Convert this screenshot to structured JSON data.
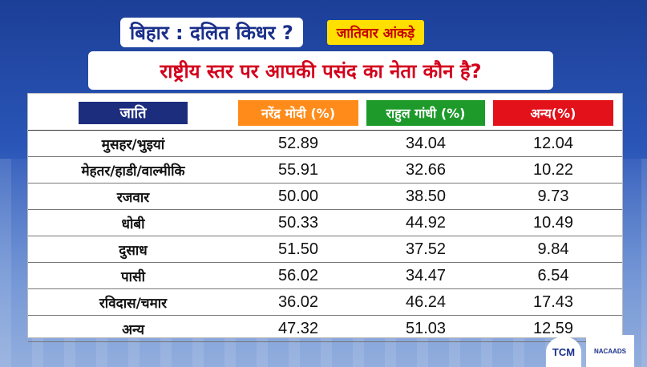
{
  "header": {
    "title": "बिहार : दलित किधर ?",
    "badge": "जातिवार आंकड़े",
    "question": "राष्ट्रीय स्तर पर आपकी पसंद का नेता कौन है?"
  },
  "table": {
    "columns": [
      "जाति",
      "नरेंद्र मोदी (%)",
      "राहुल गांधी (%)",
      "अन्य(%)"
    ],
    "column_colors": [
      "#1d2d7e",
      "#ff8c1a",
      "#1d9a2a",
      "#e3111a"
    ],
    "rows": [
      {
        "caste": "मुसहर/भुइयां",
        "modi": "52.89",
        "rahul": "34.04",
        "other": "12.04"
      },
      {
        "caste": "मेहतर/हाडी/वाल्मीकि",
        "modi": "55.91",
        "rahul": "32.66",
        "other": "10.22"
      },
      {
        "caste": "रजवार",
        "modi": "50.00",
        "rahul": "38.50",
        "other": "9.73"
      },
      {
        "caste": "धोबी",
        "modi": "50.33",
        "rahul": "44.92",
        "other": "10.49"
      },
      {
        "caste": "दुसाध",
        "modi": "51.50",
        "rahul": "37.52",
        "other": "9.84"
      },
      {
        "caste": "पासी",
        "modi": "56.02",
        "rahul": "34.47",
        "other": "6.54"
      },
      {
        "caste": "रविदास/चमार",
        "modi": "36.02",
        "rahul": "46.24",
        "other": "17.43"
      },
      {
        "caste": "अन्य",
        "modi": "47.32",
        "rahul": "51.03",
        "other": "12.59"
      }
    ]
  },
  "logos": {
    "tcm": "TCM",
    "nacaads": "NACAADS"
  }
}
